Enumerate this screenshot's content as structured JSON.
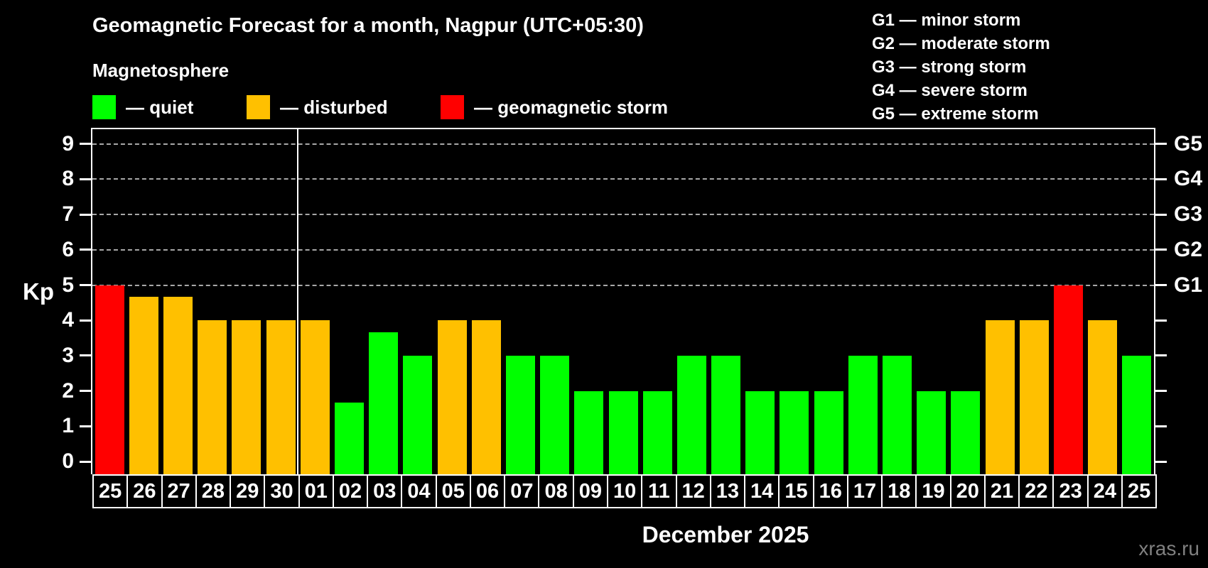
{
  "header": {
    "title": "Geomagnetic Forecast for a month, Nagpur (UTC+05:30)",
    "subtitle": "Magnetosphere",
    "legend": [
      {
        "key": "quiet",
        "label": "— quiet",
        "color": "#00ff00"
      },
      {
        "key": "disturbed",
        "label": "— disturbed",
        "color": "#ffc000"
      },
      {
        "key": "storm",
        "label": "— geomagnetic storm",
        "color": "#ff0000"
      }
    ],
    "g_scale_legend": [
      "G1 — minor storm",
      "G2 — moderate storm",
      "G3 — strong storm",
      "G4 — severe storm",
      "G5 — extreme storm"
    ]
  },
  "chart_data": {
    "type": "bar",
    "title": "Geomagnetic Forecast for a month, Nagpur (UTC+05:30)",
    "ylabel": "Kp",
    "xlabel": "December 2025",
    "ylim": [
      0,
      9
    ],
    "y_ticks": [
      0,
      1,
      2,
      3,
      4,
      5,
      6,
      7,
      8,
      9
    ],
    "gridlines_at": [
      5,
      6,
      7,
      8,
      9
    ],
    "grid": "dashed",
    "legend_position": "top",
    "right_axis_labels": [
      {
        "label": "G1",
        "kp": 5
      },
      {
        "label": "G2",
        "kp": 6
      },
      {
        "label": "G3",
        "kp": 7
      },
      {
        "label": "G4",
        "kp": 8
      },
      {
        "label": "G5",
        "kp": 9
      }
    ],
    "categories": [
      "25",
      "26",
      "27",
      "28",
      "29",
      "30",
      "01",
      "02",
      "03",
      "04",
      "05",
      "06",
      "07",
      "08",
      "09",
      "10",
      "11",
      "12",
      "13",
      "14",
      "15",
      "16",
      "17",
      "18",
      "19",
      "20",
      "21",
      "22",
      "23",
      "24",
      "25"
    ],
    "values": [
      5,
      4.67,
      4.67,
      4,
      4,
      4,
      4,
      1.67,
      3.67,
      3,
      4,
      4,
      3,
      3,
      2,
      2,
      2,
      3,
      3,
      2,
      2,
      2,
      3,
      3,
      2,
      2,
      4,
      4,
      5,
      4,
      3
    ],
    "statuses": [
      "storm",
      "disturbed",
      "disturbed",
      "disturbed",
      "disturbed",
      "disturbed",
      "disturbed",
      "quiet",
      "quiet",
      "quiet",
      "disturbed",
      "disturbed",
      "quiet",
      "quiet",
      "quiet",
      "quiet",
      "quiet",
      "quiet",
      "quiet",
      "quiet",
      "quiet",
      "quiet",
      "quiet",
      "quiet",
      "quiet",
      "quiet",
      "disturbed",
      "disturbed",
      "storm",
      "disturbed",
      "quiet"
    ],
    "colors": {
      "quiet": "#00ff00",
      "disturbed": "#ffc000",
      "storm": "#ff0000"
    },
    "month_separator_after_index": 5
  },
  "footer": {
    "month_label": "December 2025",
    "watermark": "xras.ru"
  }
}
